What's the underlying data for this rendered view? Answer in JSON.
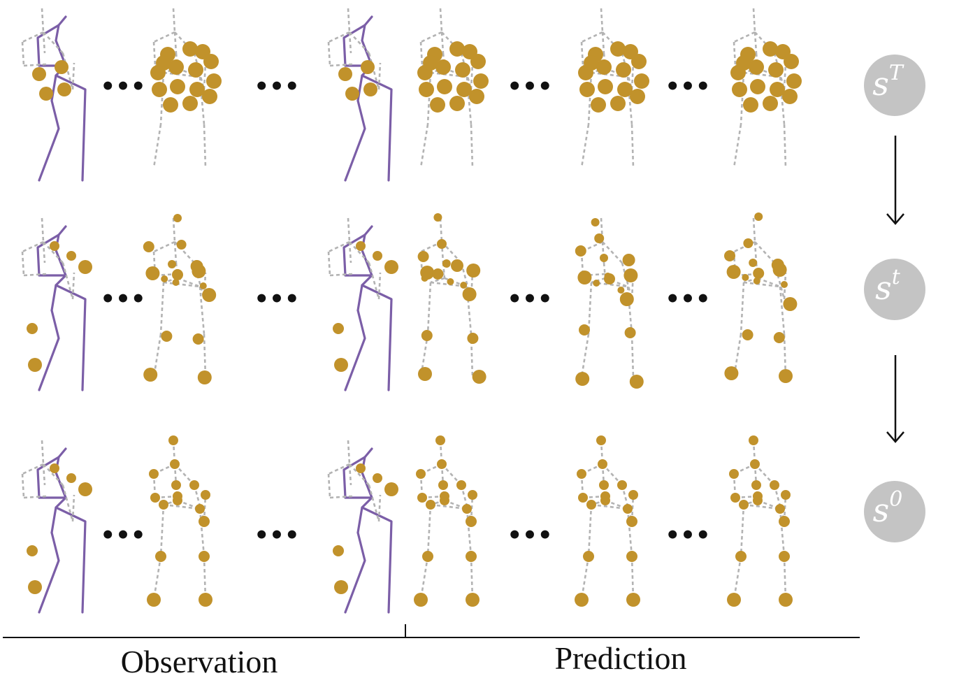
{
  "labels": {
    "observation": "Observation",
    "prediction": "Prediction",
    "ellipsis": "•••"
  },
  "states": [
    {
      "base": "s",
      "sup": "T"
    },
    {
      "base": "s",
      "sup": "t"
    },
    {
      "base": "s",
      "sup": "0"
    }
  ],
  "colors": {
    "observed_pose": "#7b5ea7",
    "dashed_bone": "#b3b3b3",
    "noise_point": "#c1922b",
    "state_circle": "#c4c4c4",
    "text": "#111111"
  },
  "icons": {
    "arrow": "down-arrow-icon",
    "skeleton": "skeleton-pose-icon"
  }
}
